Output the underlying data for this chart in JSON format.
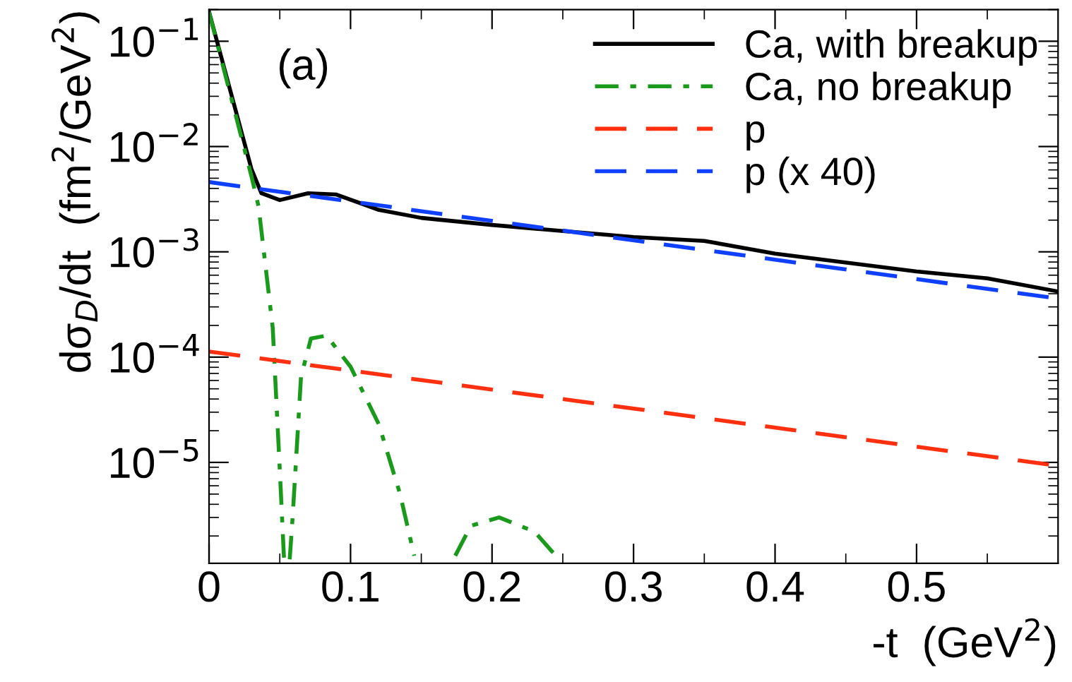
{
  "chart_data": {
    "type": "line",
    "xlabel": "-t  (GeV$^{2}$)",
    "ylabel": "dσ$_{D}$/dt  (fm$^{2}$/GeV$^{2}$)",
    "annotations": [
      "(a)"
    ],
    "log": "y",
    "xlim": [
      0,
      0.6
    ],
    "ylim": [
      1.1e-06,
      0.2
    ],
    "xticks": [
      0,
      0.1,
      0.2,
      0.3,
      0.4,
      0.5
    ],
    "yticks": [
      {
        "value": 0.1,
        "label": "10$^{−1}$"
      },
      {
        "value": 0.01,
        "label": "10$^{−2}$"
      },
      {
        "value": 0.001,
        "label": "10$^{−3}$"
      },
      {
        "value": 0.0001,
        "label": "10$^{−4}$"
      },
      {
        "value": 1e-05,
        "label": "10$^{−5}$"
      }
    ],
    "legend": "top right",
    "grid": false,
    "series": [
      {
        "name": "Ca, with breakup",
        "color": "#000000",
        "line_style": "solid",
        "x": [
          0,
          0.03,
          0.037,
          0.05,
          0.07,
          0.09,
          0.12,
          0.15,
          0.2,
          0.3,
          0.35,
          0.4,
          0.5,
          0.55,
          0.6
        ],
        "values": [
          0.19,
          0.0061,
          0.0036,
          0.0031,
          0.0036,
          0.0035,
          0.0025,
          0.0021,
          0.0018,
          0.00138,
          0.00127,
          0.00096,
          0.00065,
          0.00056,
          0.00042
        ]
      },
      {
        "name": "Ca, no breakup",
        "color": "#1a9a1a",
        "line_style": "dashdot",
        "x": [
          0,
          0.03,
          0.035,
          0.045,
          0.05,
          0.053,
          0.055,
          0.057,
          0.059,
          0.065,
          0.072,
          0.083,
          0.1,
          0.12,
          0.135,
          0.145,
          0.16,
          0.174,
          0.185,
          0.205,
          0.23,
          0.245
        ],
        "values": [
          0.19,
          0.0052,
          0.0027,
          0.00019,
          8.5e-06,
          1.2e-06,
          null,
          1.2e-06,
          2.9e-06,
          6.5e-05,
          0.00015,
          0.00016,
          8.1e-05,
          2.3e-05,
          5e-06,
          1.3e-06,
          null,
          1.3e-06,
          2.5e-06,
          3e-06,
          2.2e-06,
          1.3e-06
        ]
      },
      {
        "name": "p",
        "color": "#ff3010",
        "line_style": "dashed",
        "x": [
          0,
          0.6
        ],
        "values": [
          0.000113,
          9.3e-06
        ]
      },
      {
        "name": "p (x 40)",
        "color": "#1040ff",
        "line_style": "dashed",
        "x": [
          0,
          0.6
        ],
        "values": [
          0.0046,
          0.00036
        ]
      }
    ]
  }
}
